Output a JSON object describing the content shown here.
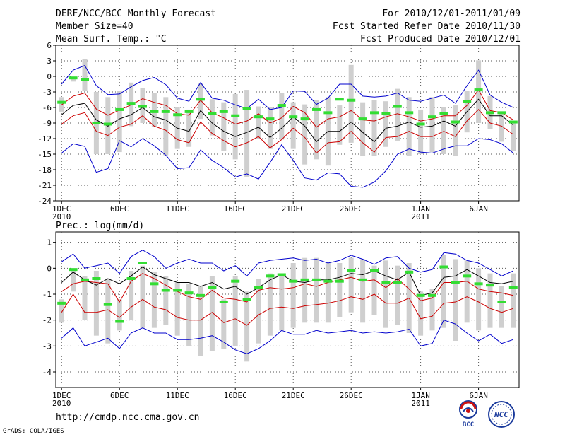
{
  "header": {
    "title": "DERF/NCC/BCC Monthly Forecast",
    "member_size": "Member Size=40",
    "variable1": "Mean Surf. Temp.: °C",
    "period": "For 2010/12/01-2011/01/09",
    "refer_date": "Fcst Started Refer Date 2010/11/30",
    "produced_date": "Fcst Produced Date 2010/12/01"
  },
  "variable2": "Prec.: log(mm/d)",
  "url": "http://cmdp.ncc.cma.gov.cn",
  "credit": "GrADS: COLA/IGES",
  "logos": {
    "bcc": "BCC",
    "ncc": "NCC"
  },
  "x_labels": [
    {
      "day": 1,
      "line1": "1DEC",
      "line2": "2010"
    },
    {
      "day": 6,
      "line1": "6DEC",
      "line2": ""
    },
    {
      "day": 11,
      "line1": "11DEC",
      "line2": ""
    },
    {
      "day": 16,
      "line1": "16DEC",
      "line2": ""
    },
    {
      "day": 21,
      "line1": "21DEC",
      "line2": ""
    },
    {
      "day": 26,
      "line1": "26DEC",
      "line2": ""
    },
    {
      "day": 32,
      "line1": "1JAN",
      "line2": "2011"
    },
    {
      "day": 37,
      "line1": "6JAN",
      "line2": ""
    }
  ],
  "chart_data": [
    {
      "type": "line",
      "title": "Mean Surf. Temp.: °C",
      "x_range": [
        0.5,
        40.5
      ],
      "ylim": [
        -24,
        6
      ],
      "yticks": [
        -24,
        -21,
        -18,
        -15,
        -12,
        -9,
        -6,
        -3,
        0,
        3,
        6
      ],
      "grid": true,
      "series": [
        {
          "name": "max",
          "color": "#0000cc",
          "values": [
            -1.5,
            1.2,
            2.1,
            -1.8,
            -3.5,
            -3.4,
            -2.0,
            -0.8,
            -0.2,
            -1.6,
            -4.2,
            -4.8,
            -1.2,
            -4.2,
            -4.6,
            -5.5,
            -6.2,
            -4.4,
            -6.4,
            -6.0,
            -2.8,
            -2.9,
            -5.4,
            -4.2,
            -1.5,
            -1.5,
            -3.8,
            -4.0,
            -3.8,
            -3.2,
            -4.6,
            -4.8,
            -4.2,
            -3.6,
            -5.2,
            -1.8,
            1.2,
            -3.6,
            -5.0,
            -6.0
          ]
        },
        {
          "name": "upper",
          "color": "#cc0000",
          "values": [
            -5.5,
            -3.8,
            -3.2,
            -6.3,
            -7.5,
            -6.5,
            -5.5,
            -4.3,
            -5.0,
            -5.6,
            -7.2,
            -7.5,
            -4.6,
            -7.0,
            -8.0,
            -9.2,
            -8.6,
            -7.2,
            -9.0,
            -8.0,
            -5.8,
            -7.0,
            -9.8,
            -8.2,
            -7.8,
            -6.6,
            -8.4,
            -8.6,
            -7.8,
            -7.2,
            -7.8,
            -8.6,
            -8.2,
            -7.6,
            -7.6,
            -5.6,
            -2.6,
            -6.6,
            -7.0,
            -8.4
          ]
        },
        {
          "name": "mean",
          "color": "#000000",
          "values": [
            -7.4,
            -5.6,
            -5.2,
            -8.4,
            -9.6,
            -8.2,
            -7.4,
            -6.0,
            -7.8,
            -8.4,
            -10.0,
            -10.6,
            -6.6,
            -9.0,
            -10.6,
            -11.6,
            -10.8,
            -9.8,
            -11.8,
            -10.0,
            -7.8,
            -9.6,
            -12.6,
            -10.6,
            -10.6,
            -8.8,
            -10.8,
            -12.6,
            -10.0,
            -9.6,
            -8.8,
            -9.8,
            -9.6,
            -8.6,
            -9.6,
            -6.8,
            -4.4,
            -7.6,
            -7.6,
            -9.4
          ]
        },
        {
          "name": "lower",
          "color": "#cc0000",
          "values": [
            -9.2,
            -7.6,
            -7.0,
            -10.6,
            -11.4,
            -9.8,
            -9.2,
            -7.6,
            -9.6,
            -10.4,
            -12.2,
            -12.8,
            -8.8,
            -11.0,
            -12.4,
            -13.6,
            -12.8,
            -11.6,
            -13.8,
            -12.2,
            -10.0,
            -11.8,
            -14.8,
            -12.8,
            -12.6,
            -10.6,
            -12.8,
            -14.6,
            -11.8,
            -11.6,
            -10.6,
            -11.6,
            -11.6,
            -10.6,
            -11.6,
            -8.6,
            -6.4,
            -9.0,
            -9.6,
            -11.2
          ]
        },
        {
          "name": "min",
          "color": "#0000cc",
          "values": [
            -14.8,
            -13.0,
            -13.5,
            -18.5,
            -17.8,
            -12.4,
            -13.6,
            -12.0,
            -13.4,
            -15.2,
            -17.8,
            -17.6,
            -14.2,
            -16.2,
            -17.6,
            -19.4,
            -18.8,
            -19.8,
            -16.6,
            -13.2,
            -16.2,
            -19.6,
            -20.0,
            -18.6,
            -18.8,
            -21.2,
            -21.4,
            -20.4,
            -18.2,
            -15.0,
            -14.0,
            -14.6,
            -14.8,
            -14.0,
            -13.4,
            -13.4,
            -12.0,
            -12.2,
            -13.0,
            -14.8
          ]
        },
        {
          "name": "box_high",
          "values": [
            -4.0,
            -0.3,
            3.3,
            -3.0,
            -4.0,
            -2.8,
            -1.2,
            -2.2,
            -3.2,
            -4.0,
            -6.0,
            -6.4,
            -1.4,
            -4.4,
            -5.0,
            -3.4,
            -2.6,
            -5.8,
            -6.0,
            -3.2,
            -5.0,
            -5.4,
            -4.6,
            -4.0,
            -5.6,
            2.2,
            -5.0,
            -4.6,
            -4.8,
            -2.4,
            -4.0,
            -6.4,
            -4.0,
            -6.0,
            -5.6,
            -2.8,
            3.1,
            -3.8,
            -7.2,
            -8.8
          ]
        },
        {
          "name": "box_low",
          "values": [
            -6.8,
            -1.0,
            -2.8,
            -15.0,
            -15.0,
            -14.6,
            -9.6,
            -9.0,
            -9.8,
            -15.2,
            -14.0,
            -13.6,
            -8.2,
            -11.4,
            -14.4,
            -16.0,
            -19.4,
            -12.0,
            -14.0,
            -12.2,
            -14.0,
            -17.0,
            -16.0,
            -17.2,
            -13.2,
            -12.8,
            -15.4,
            -15.4,
            -13.6,
            -12.4,
            -15.4,
            -15.0,
            -14.6,
            -15.0,
            -15.4,
            -10.8,
            -9.0,
            -10.2,
            -12.6,
            -14.4
          ]
        },
        {
          "name": "green",
          "color": "#33dd33",
          "values": [
            -5.0,
            -0.3,
            -0.6,
            -9.0,
            -9.2,
            -6.4,
            -5.2,
            -5.8,
            -6.8,
            -6.8,
            -7.4,
            -6.8,
            -4.4,
            -7.2,
            -6.8,
            -7.6,
            -6.2,
            -7.8,
            -8.2,
            -5.6,
            -7.8,
            -8.2,
            -6.4,
            -7.0,
            -4.4,
            -4.6,
            -8.2,
            -7.0,
            -7.2,
            -5.8,
            -7.0,
            -9.2,
            -7.8,
            -7.2,
            -8.8,
            -4.8,
            -2.6,
            -7.0,
            -7.0,
            -8.8
          ]
        }
      ]
    },
    {
      "type": "line",
      "title": "Prec.: log(mm/d)",
      "x_range": [
        0.5,
        40.5
      ],
      "ylim": [
        -4.6,
        1.4
      ],
      "yticks": [
        -4,
        -3,
        -2,
        -1,
        0,
        1
      ],
      "grid": true,
      "series": [
        {
          "name": "max",
          "color": "#0000cc",
          "values": [
            0.25,
            0.55,
            0.0,
            0.1,
            0.2,
            -0.2,
            0.45,
            0.7,
            0.45,
            0.0,
            0.2,
            0.35,
            0.2,
            0.2,
            -0.1,
            0.1,
            -0.3,
            0.2,
            0.3,
            0.35,
            0.4,
            0.3,
            0.35,
            0.2,
            0.3,
            0.5,
            0.35,
            0.15,
            0.4,
            0.45,
            0.0,
            -0.15,
            -0.05,
            0.6,
            0.55,
            0.3,
            0.2,
            -0.05,
            -0.3,
            -0.1
          ]
        },
        {
          "name": "upper",
          "color": "#cc0000",
          "values": [
            -0.9,
            -0.6,
            -0.5,
            -0.55,
            -0.6,
            -1.3,
            -0.5,
            -0.2,
            -0.4,
            -0.65,
            -0.9,
            -1.1,
            -1.2,
            -0.85,
            -1.15,
            -1.2,
            -1.3,
            -0.85,
            -0.75,
            -0.8,
            -0.75,
            -0.6,
            -0.7,
            -0.55,
            -0.45,
            -0.35,
            -0.5,
            -0.45,
            -0.75,
            -0.4,
            -0.8,
            -1.25,
            -1.15,
            -0.55,
            -0.55,
            -0.5,
            -0.8,
            -0.9,
            -0.95,
            -1.05
          ]
        },
        {
          "name": "mean",
          "color": "#000000",
          "values": [
            -0.55,
            -0.15,
            -0.45,
            -0.65,
            -0.4,
            -0.6,
            -0.3,
            0.05,
            -0.25,
            -0.4,
            -0.55,
            -0.55,
            -0.7,
            -0.55,
            -0.8,
            -0.7,
            -1.0,
            -0.75,
            -0.45,
            -0.25,
            -0.5,
            -0.55,
            -0.45,
            -0.45,
            -0.35,
            -0.2,
            -0.25,
            -0.1,
            -0.3,
            -0.45,
            -0.15,
            -1.05,
            -0.95,
            -0.35,
            -0.3,
            -0.05,
            -0.3,
            -0.55,
            -0.6,
            -0.5
          ]
        },
        {
          "name": "lower",
          "color": "#cc0000",
          "values": [
            -1.7,
            -1.0,
            -1.7,
            -1.7,
            -1.6,
            -1.9,
            -1.5,
            -1.2,
            -1.5,
            -1.6,
            -1.9,
            -2.0,
            -2.0,
            -1.7,
            -2.1,
            -1.95,
            -2.2,
            -1.8,
            -1.55,
            -1.5,
            -1.55,
            -1.45,
            -1.4,
            -1.35,
            -1.25,
            -1.1,
            -1.2,
            -1.0,
            -1.35,
            -1.35,
            -1.15,
            -1.95,
            -1.85,
            -1.35,
            -1.3,
            -1.1,
            -1.3,
            -1.55,
            -1.7,
            -1.55
          ]
        },
        {
          "name": "min",
          "color": "#0000cc",
          "values": [
            -2.7,
            -2.3,
            -3.0,
            -2.85,
            -2.7,
            -3.1,
            -2.5,
            -2.3,
            -2.5,
            -2.5,
            -2.75,
            -2.75,
            -2.7,
            -2.6,
            -2.85,
            -3.15,
            -3.3,
            -3.1,
            -2.8,
            -2.4,
            -2.55,
            -2.55,
            -2.4,
            -2.5,
            -2.45,
            -2.4,
            -2.5,
            -2.45,
            -2.5,
            -2.45,
            -2.35,
            -3.0,
            -2.9,
            -2.0,
            -2.15,
            -2.5,
            -2.8,
            -2.55,
            -2.9,
            -2.75
          ]
        },
        {
          "name": "box_high",
          "values": [
            -1.2,
            -0.1,
            -0.3,
            -0.1,
            -0.4,
            -1.2,
            -0.1,
            0.1,
            -0.15,
            -0.3,
            -0.55,
            -0.6,
            -0.7,
            -0.3,
            -1.2,
            -0.3,
            -0.9,
            -0.4,
            -0.2,
            -0.2,
            0.2,
            0.4,
            0.4,
            0.2,
            0.2,
            0.4,
            0.35,
            0.1,
            0.3,
            0.1,
            0.2,
            -0.9,
            -0.8,
            0.5,
            0.35,
            0.3,
            0.0,
            -0.2,
            -0.7,
            -0.2
          ]
        },
        {
          "name": "box_low",
          "values": [
            -2.1,
            -0.9,
            -2.0,
            -2.6,
            -2.9,
            -2.4,
            -2.0,
            -2.3,
            -2.3,
            -2.2,
            -2.6,
            -3.0,
            -3.4,
            -3.2,
            -3.1,
            -3.0,
            -3.6,
            -2.9,
            -2.6,
            -2.4,
            -2.3,
            -2.1,
            -2.1,
            -2.1,
            -1.9,
            -1.7,
            -2.1,
            -1.8,
            -2.3,
            -2.2,
            -2.5,
            -2.6,
            -2.4,
            -2.3,
            -2.8,
            -2.1,
            -2.4,
            -2.3,
            -2.3,
            -2.3
          ]
        },
        {
          "name": "green",
          "color": "#33dd33",
          "values": [
            -1.35,
            -0.05,
            -0.45,
            -0.4,
            -1.4,
            -2.05,
            -0.4,
            0.2,
            -0.6,
            -0.85,
            -0.85,
            -0.95,
            -1.05,
            -0.75,
            -1.3,
            -0.5,
            -1.2,
            -0.75,
            -0.3,
            -0.25,
            -0.5,
            -0.45,
            -0.45,
            -0.5,
            -0.5,
            -0.1,
            -0.45,
            -0.1,
            -0.55,
            -0.55,
            -0.15,
            -1.05,
            -1.05,
            0.05,
            -0.55,
            -0.3,
            -0.6,
            -0.65,
            -1.3,
            -0.75
          ]
        }
      ]
    }
  ]
}
